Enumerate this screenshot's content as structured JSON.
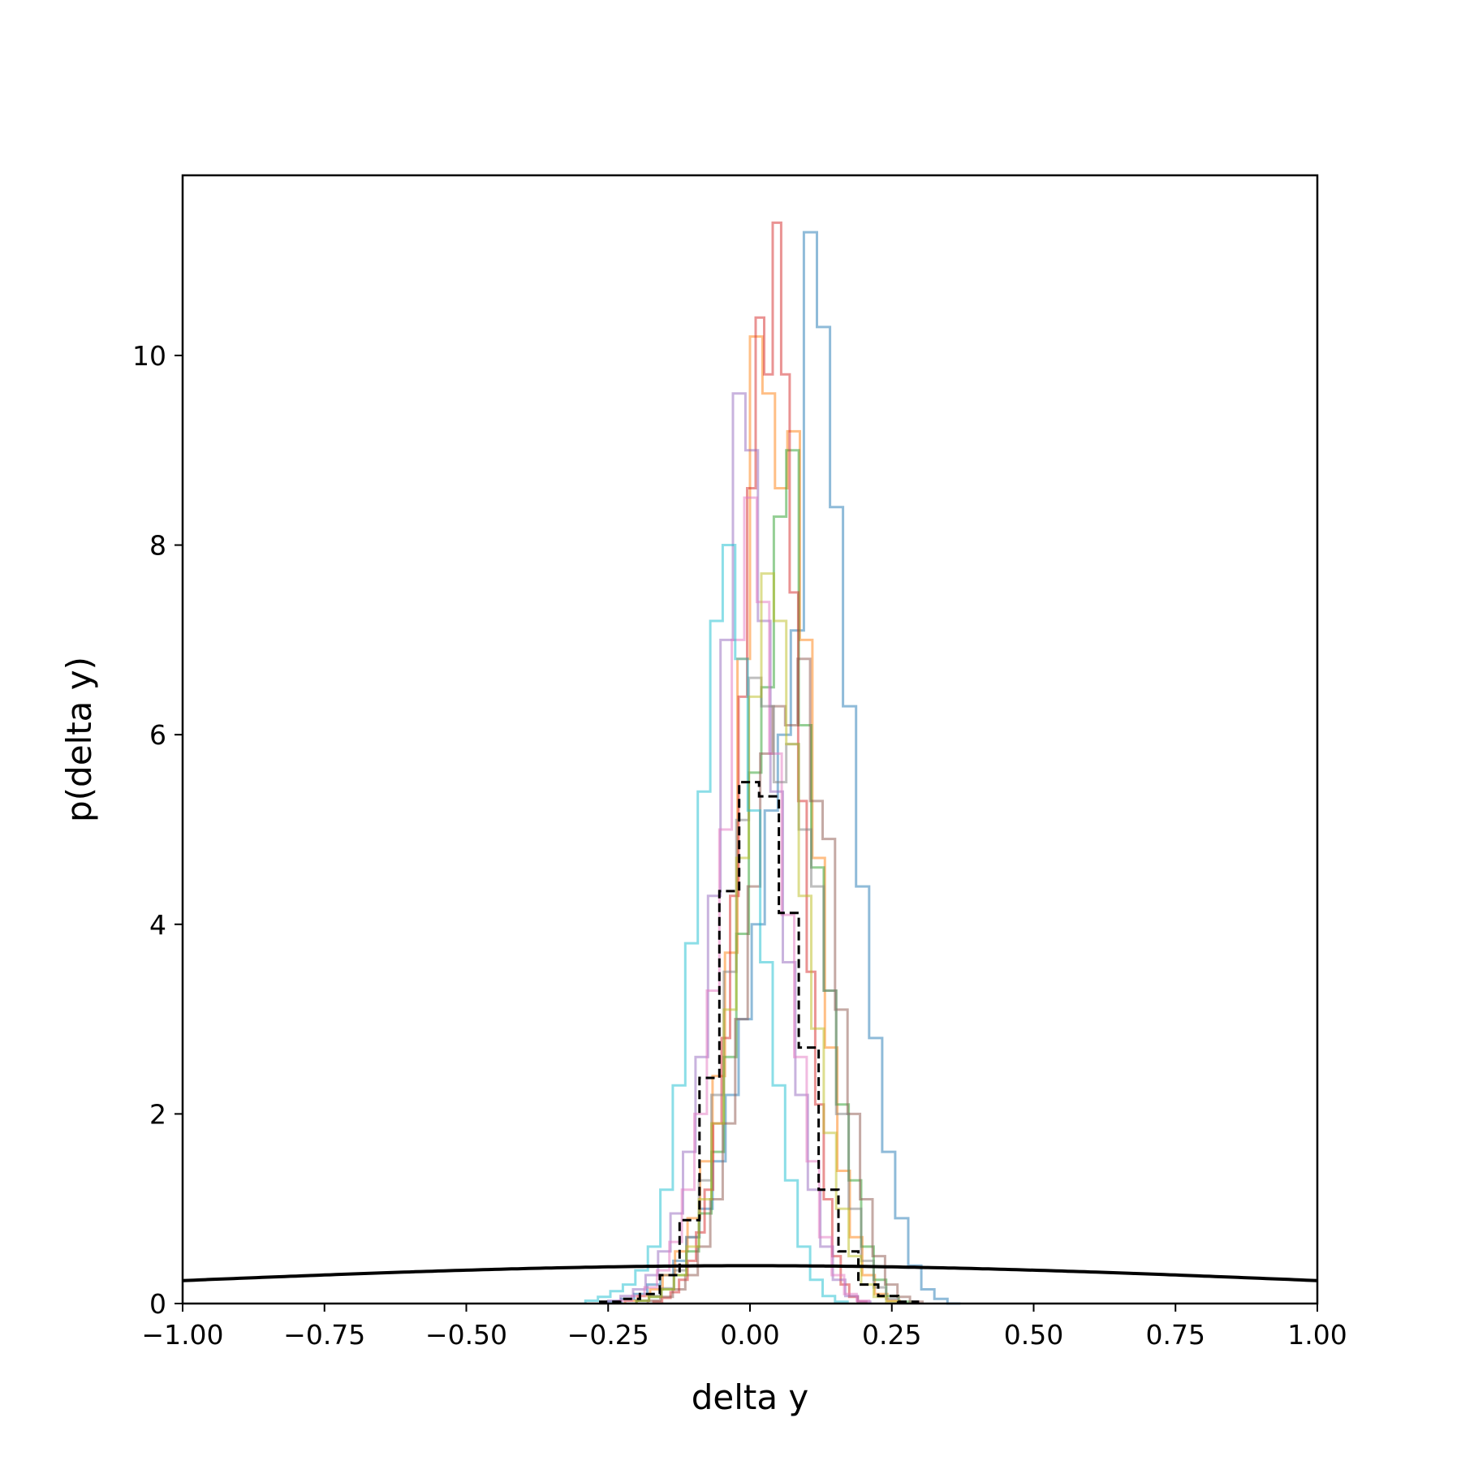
{
  "chart_data": {
    "type": "step-histogram",
    "xlabel": "delta y",
    "ylabel": "p(delta y)",
    "xlim": [
      -1.0,
      1.0
    ],
    "ylim": [
      0,
      11.9
    ],
    "xticks": [
      -1.0,
      -0.75,
      -0.5,
      -0.25,
      0.0,
      0.25,
      0.5,
      0.75,
      1.0
    ],
    "xtick_labels": [
      "−1.00",
      "−0.75",
      "−0.50",
      "−0.25",
      "0.00",
      "0.25",
      "0.50",
      "0.75",
      "1.00"
    ],
    "yticks": [
      0,
      2,
      4,
      6,
      8,
      10
    ],
    "ytick_labels": [
      "0",
      "2",
      "4",
      "6",
      "8",
      "10"
    ],
    "grid": false,
    "series": [
      {
        "color": "#1f77b4",
        "bin_width": 0.023,
        "values": [
          {
            "x": -0.25,
            "y": 0.02
          },
          {
            "x": -0.227,
            "y": 0.05
          },
          {
            "x": -0.204,
            "y": 0.1
          },
          {
            "x": -0.181,
            "y": 0.2
          },
          {
            "x": -0.158,
            "y": 0.3
          },
          {
            "x": -0.135,
            "y": 0.45
          },
          {
            "x": -0.112,
            "y": 0.7
          },
          {
            "x": -0.089,
            "y": 1.0
          },
          {
            "x": -0.066,
            "y": 1.5
          },
          {
            "x": -0.043,
            "y": 2.2
          },
          {
            "x": -0.02,
            "y": 3.0
          },
          {
            "x": 0.003,
            "y": 4.0
          },
          {
            "x": 0.026,
            "y": 5.2
          },
          {
            "x": 0.049,
            "y": 6.0
          },
          {
            "x": 0.072,
            "y": 7.1
          },
          {
            "x": 0.095,
            "y": 11.3
          },
          {
            "x": 0.118,
            "y": 10.3
          },
          {
            "x": 0.141,
            "y": 8.4
          },
          {
            "x": 0.164,
            "y": 6.3
          },
          {
            "x": 0.187,
            "y": 4.4
          },
          {
            "x": 0.21,
            "y": 2.8
          },
          {
            "x": 0.233,
            "y": 1.6
          },
          {
            "x": 0.256,
            "y": 0.9
          },
          {
            "x": 0.279,
            "y": 0.4
          },
          {
            "x": 0.302,
            "y": 0.15
          },
          {
            "x": 0.325,
            "y": 0.05
          },
          {
            "x": 0.348,
            "y": 0.0
          }
        ]
      },
      {
        "color": "#ff7f0e",
        "bin_width": 0.022,
        "values": [
          {
            "x": -0.22,
            "y": 0.03
          },
          {
            "x": -0.198,
            "y": 0.08
          },
          {
            "x": -0.176,
            "y": 0.15
          },
          {
            "x": -0.154,
            "y": 0.3
          },
          {
            "x": -0.132,
            "y": 0.55
          },
          {
            "x": -0.11,
            "y": 0.9
          },
          {
            "x": -0.088,
            "y": 1.5
          },
          {
            "x": -0.066,
            "y": 2.4
          },
          {
            "x": -0.044,
            "y": 3.7
          },
          {
            "x": -0.022,
            "y": 6.8
          },
          {
            "x": 0.0,
            "y": 10.2
          },
          {
            "x": 0.022,
            "y": 9.6
          },
          {
            "x": 0.044,
            "y": 8.6
          },
          {
            "x": 0.066,
            "y": 9.2
          },
          {
            "x": 0.088,
            "y": 7.0
          },
          {
            "x": 0.11,
            "y": 4.7
          },
          {
            "x": 0.132,
            "y": 2.7
          },
          {
            "x": 0.154,
            "y": 1.4
          },
          {
            "x": 0.176,
            "y": 0.7
          },
          {
            "x": 0.198,
            "y": 0.3
          },
          {
            "x": 0.22,
            "y": 0.1
          },
          {
            "x": 0.242,
            "y": 0.03
          }
        ]
      },
      {
        "color": "#2ca02c",
        "bin_width": 0.022,
        "values": [
          {
            "x": -0.2,
            "y": 0.03
          },
          {
            "x": -0.178,
            "y": 0.07
          },
          {
            "x": -0.156,
            "y": 0.15
          },
          {
            "x": -0.134,
            "y": 0.3
          },
          {
            "x": -0.112,
            "y": 0.55
          },
          {
            "x": -0.09,
            "y": 0.95
          },
          {
            "x": -0.068,
            "y": 1.6
          },
          {
            "x": -0.046,
            "y": 2.6
          },
          {
            "x": -0.024,
            "y": 3.9
          },
          {
            "x": -0.002,
            "y": 5.6
          },
          {
            "x": 0.02,
            "y": 6.5
          },
          {
            "x": 0.042,
            "y": 8.3
          },
          {
            "x": 0.064,
            "y": 9.0
          },
          {
            "x": 0.086,
            "y": 6.1
          },
          {
            "x": 0.108,
            "y": 4.6
          },
          {
            "x": 0.13,
            "y": 3.3
          },
          {
            "x": 0.152,
            "y": 2.1
          },
          {
            "x": 0.174,
            "y": 1.3
          },
          {
            "x": 0.196,
            "y": 0.6
          },
          {
            "x": 0.218,
            "y": 0.25
          },
          {
            "x": 0.24,
            "y": 0.08
          },
          {
            "x": 0.262,
            "y": 0.02
          }
        ]
      },
      {
        "color": "#d62728",
        "bin_width": 0.015,
        "values": [
          {
            "x": -0.17,
            "y": 0.02
          },
          {
            "x": -0.155,
            "y": 0.06
          },
          {
            "x": -0.14,
            "y": 0.12
          },
          {
            "x": -0.125,
            "y": 0.25
          },
          {
            "x": -0.11,
            "y": 0.45
          },
          {
            "x": -0.095,
            "y": 0.75
          },
          {
            "x": -0.08,
            "y": 1.2
          },
          {
            "x": -0.065,
            "y": 1.9
          },
          {
            "x": -0.05,
            "y": 2.8
          },
          {
            "x": -0.035,
            "y": 4.3
          },
          {
            "x": -0.02,
            "y": 6.4
          },
          {
            "x": -0.005,
            "y": 8.6
          },
          {
            "x": 0.01,
            "y": 10.4
          },
          {
            "x": 0.025,
            "y": 9.8
          },
          {
            "x": 0.04,
            "y": 11.4
          },
          {
            "x": 0.055,
            "y": 9.8
          },
          {
            "x": 0.07,
            "y": 7.5
          },
          {
            "x": 0.085,
            "y": 5.3
          },
          {
            "x": 0.1,
            "y": 3.5
          },
          {
            "x": 0.115,
            "y": 2.1
          },
          {
            "x": 0.13,
            "y": 1.1
          },
          {
            "x": 0.145,
            "y": 0.5
          },
          {
            "x": 0.16,
            "y": 0.2
          },
          {
            "x": 0.175,
            "y": 0.07
          },
          {
            "x": 0.19,
            "y": 0.02
          }
        ]
      },
      {
        "color": "#9467bd",
        "bin_width": 0.022,
        "values": [
          {
            "x": -0.25,
            "y": 0.03
          },
          {
            "x": -0.228,
            "y": 0.08
          },
          {
            "x": -0.206,
            "y": 0.15
          },
          {
            "x": -0.184,
            "y": 0.3
          },
          {
            "x": -0.162,
            "y": 0.55
          },
          {
            "x": -0.14,
            "y": 0.95
          },
          {
            "x": -0.118,
            "y": 1.6
          },
          {
            "x": -0.096,
            "y": 2.6
          },
          {
            "x": -0.074,
            "y": 4.3
          },
          {
            "x": -0.052,
            "y": 7.0
          },
          {
            "x": -0.03,
            "y": 9.6
          },
          {
            "x": -0.008,
            "y": 9.0
          },
          {
            "x": 0.014,
            "y": 7.2
          },
          {
            "x": 0.036,
            "y": 5.4
          },
          {
            "x": 0.058,
            "y": 3.6
          },
          {
            "x": 0.08,
            "y": 2.2
          },
          {
            "x": 0.102,
            "y": 1.2
          },
          {
            "x": 0.124,
            "y": 0.6
          },
          {
            "x": 0.146,
            "y": 0.25
          },
          {
            "x": 0.168,
            "y": 0.08
          },
          {
            "x": 0.19,
            "y": 0.02
          }
        ]
      },
      {
        "color": "#8c564b",
        "bin_width": 0.022,
        "values": [
          {
            "x": -0.18,
            "y": 0.03
          },
          {
            "x": -0.158,
            "y": 0.07
          },
          {
            "x": -0.136,
            "y": 0.15
          },
          {
            "x": -0.114,
            "y": 0.3
          },
          {
            "x": -0.092,
            "y": 0.6
          },
          {
            "x": -0.07,
            "y": 1.1
          },
          {
            "x": -0.048,
            "y": 1.9
          },
          {
            "x": -0.026,
            "y": 3.0
          },
          {
            "x": -0.004,
            "y": 4.4
          },
          {
            "x": 0.018,
            "y": 5.8
          },
          {
            "x": 0.04,
            "y": 6.3
          },
          {
            "x": 0.062,
            "y": 6.1
          },
          {
            "x": 0.084,
            "y": 6.8
          },
          {
            "x": 0.106,
            "y": 5.3
          },
          {
            "x": 0.128,
            "y": 4.9
          },
          {
            "x": 0.15,
            "y": 3.1
          },
          {
            "x": 0.172,
            "y": 2.0
          },
          {
            "x": 0.194,
            "y": 1.1
          },
          {
            "x": 0.216,
            "y": 0.5
          },
          {
            "x": 0.238,
            "y": 0.2
          },
          {
            "x": 0.26,
            "y": 0.07
          },
          {
            "x": 0.282,
            "y": 0.02
          }
        ]
      },
      {
        "color": "#e377c2",
        "bin_width": 0.022,
        "values": [
          {
            "x": -0.23,
            "y": 0.03
          },
          {
            "x": -0.208,
            "y": 0.08
          },
          {
            "x": -0.186,
            "y": 0.17
          },
          {
            "x": -0.164,
            "y": 0.35
          },
          {
            "x": -0.142,
            "y": 0.65
          },
          {
            "x": -0.12,
            "y": 1.2
          },
          {
            "x": -0.098,
            "y": 2.0
          },
          {
            "x": -0.076,
            "y": 3.3
          },
          {
            "x": -0.054,
            "y": 5.0
          },
          {
            "x": -0.032,
            "y": 7.0
          },
          {
            "x": -0.01,
            "y": 8.5
          },
          {
            "x": 0.012,
            "y": 7.4
          },
          {
            "x": 0.034,
            "y": 5.8
          },
          {
            "x": 0.056,
            "y": 4.1
          },
          {
            "x": 0.078,
            "y": 2.6
          },
          {
            "x": 0.1,
            "y": 1.5
          },
          {
            "x": 0.122,
            "y": 0.7
          },
          {
            "x": 0.144,
            "y": 0.3
          },
          {
            "x": 0.166,
            "y": 0.1
          },
          {
            "x": 0.188,
            "y": 0.03
          }
        ]
      },
      {
        "color": "#7f7f7f",
        "bin_width": 0.022,
        "values": [
          {
            "x": -0.2,
            "y": 0.03
          },
          {
            "x": -0.178,
            "y": 0.08
          },
          {
            "x": -0.156,
            "y": 0.16
          },
          {
            "x": -0.134,
            "y": 0.35
          },
          {
            "x": -0.112,
            "y": 0.7
          },
          {
            "x": -0.09,
            "y": 1.3
          },
          {
            "x": -0.068,
            "y": 2.2
          },
          {
            "x": -0.046,
            "y": 3.5
          },
          {
            "x": -0.024,
            "y": 5.1
          },
          {
            "x": -0.002,
            "y": 6.6
          },
          {
            "x": 0.02,
            "y": 6.3
          },
          {
            "x": 0.042,
            "y": 5.5
          },
          {
            "x": 0.064,
            "y": 5.9
          },
          {
            "x": 0.086,
            "y": 5.0
          },
          {
            "x": 0.108,
            "y": 4.4
          },
          {
            "x": 0.13,
            "y": 3.3
          },
          {
            "x": 0.152,
            "y": 2.0
          },
          {
            "x": 0.174,
            "y": 1.0
          },
          {
            "x": 0.196,
            "y": 0.45
          },
          {
            "x": 0.218,
            "y": 0.17
          },
          {
            "x": 0.24,
            "y": 0.05
          }
        ]
      },
      {
        "color": "#bcbd22",
        "bin_width": 0.022,
        "values": [
          {
            "x": -0.2,
            "y": 0.03
          },
          {
            "x": -0.178,
            "y": 0.07
          },
          {
            "x": -0.156,
            "y": 0.15
          },
          {
            "x": -0.134,
            "y": 0.3
          },
          {
            "x": -0.112,
            "y": 0.6
          },
          {
            "x": -0.09,
            "y": 1.1
          },
          {
            "x": -0.068,
            "y": 1.9
          },
          {
            "x": -0.046,
            "y": 3.1
          },
          {
            "x": -0.024,
            "y": 4.7
          },
          {
            "x": -0.002,
            "y": 6.4
          },
          {
            "x": 0.02,
            "y": 7.7
          },
          {
            "x": 0.042,
            "y": 7.2
          },
          {
            "x": 0.064,
            "y": 5.9
          },
          {
            "x": 0.086,
            "y": 4.3
          },
          {
            "x": 0.108,
            "y": 2.9
          },
          {
            "x": 0.13,
            "y": 1.8
          },
          {
            "x": 0.152,
            "y": 1.0
          },
          {
            "x": 0.174,
            "y": 0.5
          },
          {
            "x": 0.196,
            "y": 0.2
          },
          {
            "x": 0.218,
            "y": 0.07
          },
          {
            "x": 0.24,
            "y": 0.02
          }
        ]
      },
      {
        "color": "#17becf",
        "bin_width": 0.022,
        "values": [
          {
            "x": -0.29,
            "y": 0.03
          },
          {
            "x": -0.268,
            "y": 0.07
          },
          {
            "x": -0.246,
            "y": 0.13
          },
          {
            "x": -0.224,
            "y": 0.2
          },
          {
            "x": -0.202,
            "y": 0.35
          },
          {
            "x": -0.18,
            "y": 0.6
          },
          {
            "x": -0.158,
            "y": 1.2
          },
          {
            "x": -0.136,
            "y": 2.3
          },
          {
            "x": -0.114,
            "y": 3.8
          },
          {
            "x": -0.092,
            "y": 5.4
          },
          {
            "x": -0.07,
            "y": 7.2
          },
          {
            "x": -0.048,
            "y": 8.0
          },
          {
            "x": -0.026,
            "y": 6.8
          },
          {
            "x": -0.004,
            "y": 5.2
          },
          {
            "x": 0.018,
            "y": 3.6
          },
          {
            "x": 0.04,
            "y": 2.3
          },
          {
            "x": 0.062,
            "y": 1.3
          },
          {
            "x": 0.084,
            "y": 0.6
          },
          {
            "x": 0.106,
            "y": 0.25
          },
          {
            "x": 0.128,
            "y": 0.08
          },
          {
            "x": 0.15,
            "y": 0.02
          }
        ]
      }
    ],
    "dashed_histogram": {
      "color": "#000000",
      "bin_width": 0.035,
      "values": [
        {
          "x": -0.264,
          "y": 0.02
        },
        {
          "x": -0.229,
          "y": 0.05
        },
        {
          "x": -0.194,
          "y": 0.1
        },
        {
          "x": -0.159,
          "y": 0.3
        },
        {
          "x": -0.124,
          "y": 0.88
        },
        {
          "x": -0.089,
          "y": 2.38
        },
        {
          "x": -0.054,
          "y": 4.35
        },
        {
          "x": -0.019,
          "y": 5.5
        },
        {
          "x": 0.016,
          "y": 5.35
        },
        {
          "x": 0.051,
          "y": 4.12
        },
        {
          "x": 0.086,
          "y": 2.7
        },
        {
          "x": 0.121,
          "y": 1.2
        },
        {
          "x": 0.156,
          "y": 0.55
        },
        {
          "x": 0.191,
          "y": 0.2
        },
        {
          "x": 0.226,
          "y": 0.08
        },
        {
          "x": 0.261,
          "y": 0.02
        }
      ]
    },
    "reference_curve": {
      "type": "line",
      "color": "#000000",
      "distribution": "normal",
      "mean": 0.0,
      "sigma": 1.0
    }
  }
}
